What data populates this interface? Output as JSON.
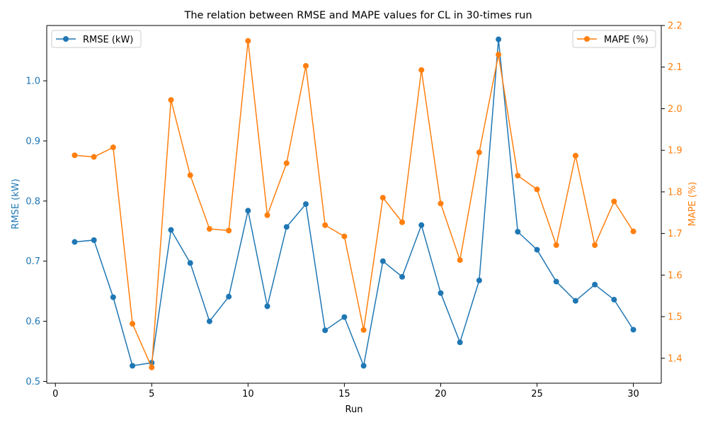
{
  "chart_data": {
    "type": "line",
    "title": "The relation between RMSE and MAPE values for CL in 30-times run",
    "xlabel": "Run",
    "ylabel_left": "RMSE (kW)",
    "ylabel_right": "MAPE (%)",
    "xlim": [
      -0.45,
      31.45
    ],
    "ylim_left": [
      0.497,
      1.092
    ],
    "ylim_right": [
      1.34,
      2.2
    ],
    "x_ticks": [
      0,
      5,
      10,
      15,
      20,
      25,
      30
    ],
    "y_left_ticks": [
      0.5,
      0.6,
      0.7,
      0.8,
      0.9,
      1.0
    ],
    "y_right_ticks": [
      1.4,
      1.5,
      1.6,
      1.7,
      1.8,
      1.9,
      2.0,
      2.1,
      2.2
    ],
    "x": [
      1,
      2,
      3,
      4,
      5,
      6,
      7,
      8,
      9,
      10,
      11,
      12,
      13,
      14,
      15,
      16,
      17,
      18,
      19,
      20,
      21,
      22,
      23,
      24,
      25,
      26,
      27,
      28,
      29,
      30
    ],
    "series": [
      {
        "name": "RMSE (kW)",
        "axis": "left",
        "color": "#1f77b4",
        "values": [
          0.732,
          0.735,
          0.64,
          0.526,
          0.531,
          0.752,
          0.697,
          0.6,
          0.641,
          0.784,
          0.625,
          0.757,
          0.795,
          0.585,
          0.607,
          0.526,
          0.7,
          0.674,
          0.76,
          0.647,
          0.565,
          0.668,
          1.069,
          0.749,
          0.719,
          0.666,
          0.634,
          0.661,
          0.636,
          0.586
        ]
      },
      {
        "name": "MAPE (%)",
        "axis": "right",
        "color": "#ff7f0e",
        "values": [
          1.888,
          1.884,
          1.907,
          1.483,
          1.378,
          2.021,
          1.84,
          1.711,
          1.707,
          2.163,
          1.744,
          1.869,
          2.103,
          1.72,
          1.693,
          1.468,
          1.786,
          1.727,
          2.093,
          1.772,
          1.636,
          1.895,
          2.13,
          1.839,
          1.806,
          1.672,
          1.887,
          1.672,
          1.777,
          1.705
        ]
      }
    ],
    "legend": [
      {
        "label": "RMSE (kW)",
        "placement": "upper-left"
      },
      {
        "label": "MAPE (%)",
        "placement": "upper-right"
      }
    ],
    "grid": false
  }
}
